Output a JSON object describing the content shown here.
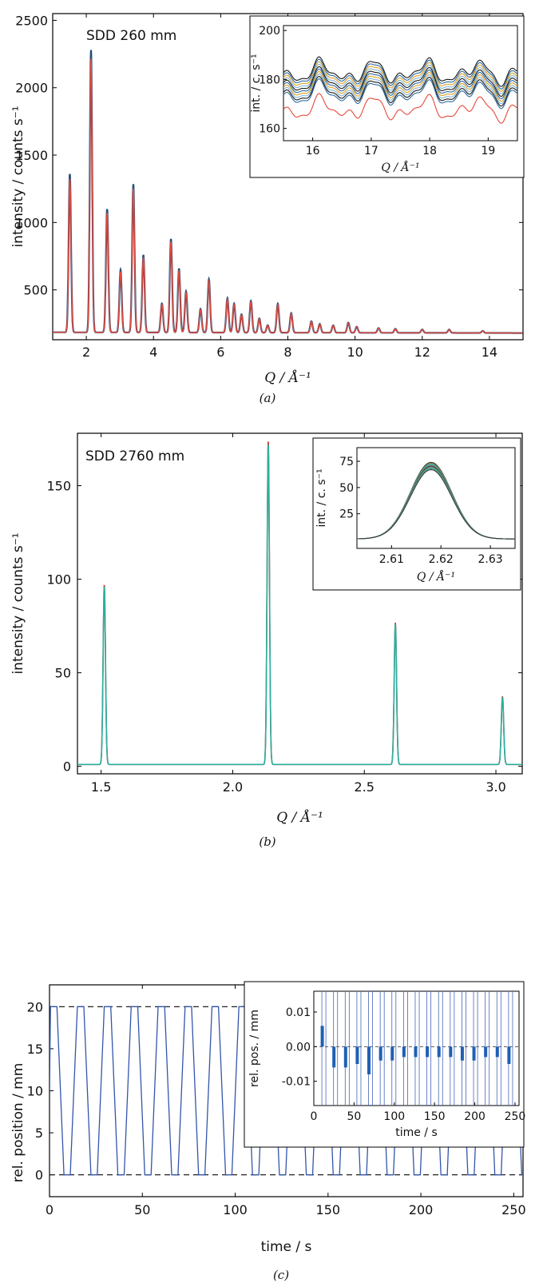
{
  "chart_data": [
    {
      "id": "a",
      "type": "line",
      "caption": "(a)",
      "annotation": "SDD 260 mm",
      "xlabel": "Q / Å⁻¹",
      "ylabel": "intensity / counts s⁻¹",
      "xlim": [
        1,
        15
      ],
      "ylim": [
        130,
        2550
      ],
      "xticks": [
        "2",
        "4",
        "6",
        "8",
        "10",
        "12",
        "14"
      ],
      "yticks": [
        "500",
        "1000",
        "1500",
        "2000",
        "2500"
      ],
      "baseline": 185,
      "peaks": [
        [
          1.51,
          1360
        ],
        [
          2.14,
          2280
        ],
        [
          2.62,
          1100
        ],
        [
          3.02,
          650
        ],
        [
          3.4,
          1285
        ],
        [
          3.7,
          760
        ],
        [
          4.25,
          400
        ],
        [
          4.52,
          880
        ],
        [
          4.76,
          660
        ],
        [
          4.97,
          490
        ],
        [
          5.4,
          360
        ],
        [
          5.65,
          580
        ],
        [
          6.2,
          440
        ],
        [
          6.4,
          400
        ],
        [
          6.62,
          320
        ],
        [
          6.9,
          420
        ],
        [
          7.15,
          290
        ],
        [
          7.4,
          240
        ],
        [
          7.7,
          400
        ],
        [
          8.1,
          330
        ],
        [
          8.7,
          270
        ],
        [
          8.95,
          250
        ],
        [
          9.35,
          240
        ],
        [
          9.8,
          260
        ],
        [
          10.05,
          230
        ],
        [
          10.7,
          220
        ],
        [
          11.2,
          215
        ],
        [
          12.0,
          210
        ],
        [
          12.8,
          210
        ],
        [
          13.8,
          200
        ]
      ],
      "series": [
        {
          "name": "",
          "color": "#1f4e79"
        },
        {
          "name": "",
          "color": "#e8493a"
        }
      ],
      "inset": {
        "xlabel": "Q / Å⁻¹",
        "ylabel": "int. / c. s⁻¹",
        "xlim": [
          15.5,
          19.5
        ],
        "ylim": [
          155,
          202
        ],
        "xticks": [
          "16",
          "17",
          "18",
          "19"
        ],
        "yticks": [
          "160",
          "180",
          "200"
        ],
        "level_top": 183,
        "level_bottom": 168,
        "series_colors": [
          "#1a1a1a",
          "#2d6a9f",
          "#e0a020",
          "#7fb3d5",
          "#e8493a"
        ]
      }
    },
    {
      "id": "b",
      "type": "line",
      "caption": "(b)",
      "annotation": "SDD 2760 mm",
      "xlabel": "Q / Å⁻¹",
      "ylabel": "intensity / counts s⁻¹",
      "xlim": [
        1.41,
        3.1
      ],
      "ylim": [
        -4,
        178
      ],
      "xticks": [
        "1.5",
        "2.0",
        "2.5",
        "3.0"
      ],
      "yticks": [
        "0",
        "50",
        "100",
        "150"
      ],
      "baseline": 1,
      "peaks": [
        [
          1.512,
          96
        ],
        [
          2.135,
          172
        ],
        [
          2.618,
          76
        ],
        [
          3.025,
          37
        ]
      ],
      "series": [
        {
          "name": "",
          "color": "#2ab0a0"
        },
        {
          "name": "",
          "color": "#c0392b"
        }
      ],
      "inset": {
        "xlabel": "Q / Å⁻¹",
        "ylabel": "int. / c. s⁻¹",
        "xlim": [
          2.603,
          2.635
        ],
        "ylim": [
          -8,
          88
        ],
        "xticks": [
          "2.61",
          "2.62",
          "2.63"
        ],
        "yticks": [
          "25",
          "50",
          "75"
        ],
        "peak_center": 2.618,
        "peak_top": 74,
        "peak_bottom": 67,
        "series_colors": [
          "#3a3a3a",
          "#8e6b3a",
          "#2ab0a0",
          "#5f9ea0"
        ]
      }
    },
    {
      "id": "c",
      "type": "line",
      "caption": "(c)",
      "xlabel": "time / s",
      "ylabel": "rel. position / mm",
      "xlim": [
        0,
        255
      ],
      "ylim": [
        -2.6,
        22.6
      ],
      "xticks": [
        "0",
        "50",
        "100",
        "150",
        "200",
        "250"
      ],
      "yticks": [
        "0",
        "5",
        "10",
        "15",
        "20"
      ],
      "reference_lines": [
        0,
        20
      ],
      "period": 14.5,
      "high": 20,
      "low": 0,
      "series": [
        {
          "name": "",
          "color": "#3355aa"
        }
      ],
      "inset": {
        "xlabel": "time / s",
        "ylabel": "rel. pos. / mm",
        "xlim": [
          0,
          255
        ],
        "ylim": [
          -0.017,
          0.016
        ],
        "xticks": [
          "0",
          "50",
          "100",
          "150",
          "200",
          "250"
        ],
        "yticks": [
          "0.01",
          "0.00",
          "-0.01"
        ],
        "bar_values": [
          0.006,
          -0.006,
          -0.006,
          -0.005,
          -0.008,
          -0.004,
          -0.004,
          -0.003,
          -0.003,
          -0.003,
          -0.003,
          -0.003,
          -0.004,
          -0.004,
          -0.003,
          -0.003,
          -0.005
        ],
        "bar_color": "#1f5fb5"
      }
    }
  ]
}
